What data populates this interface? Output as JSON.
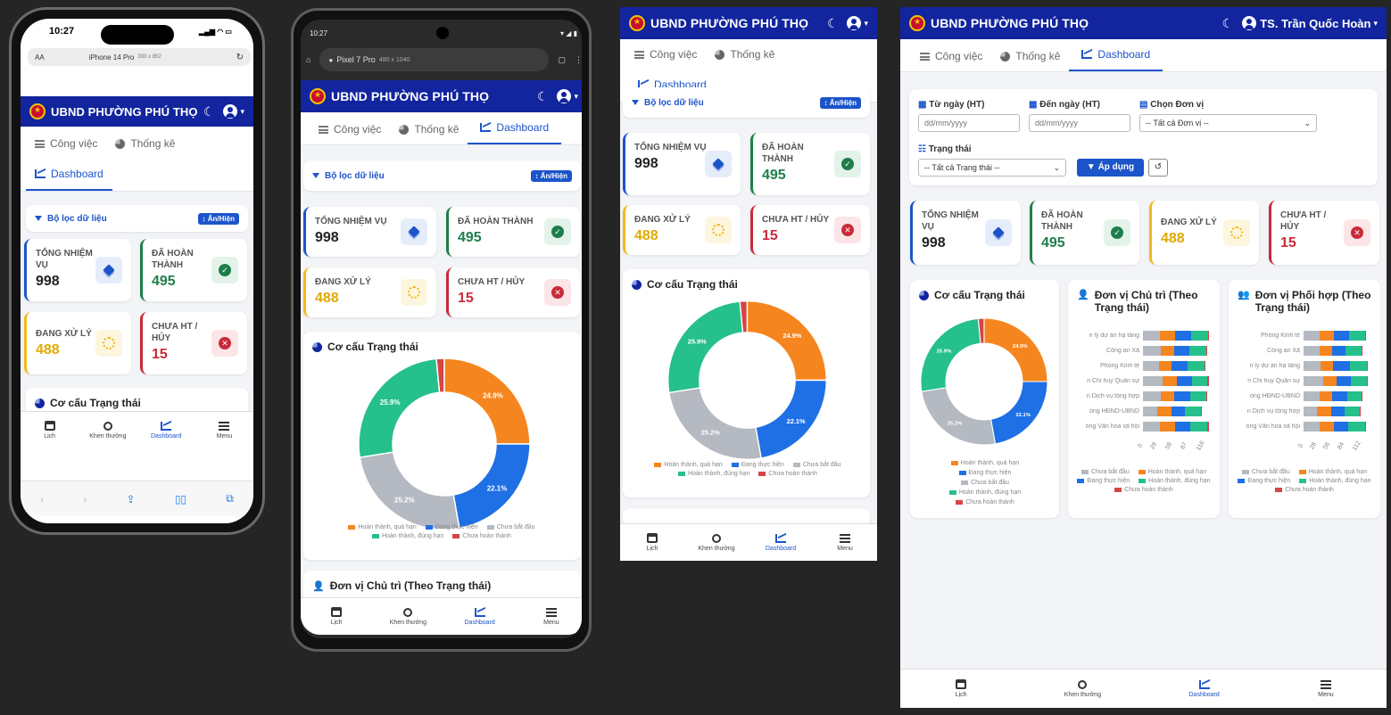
{
  "app": {
    "title": "UBND PHƯỜNG PHÚ THỌ",
    "user_name": "TS. Trần Quốc Hoàn"
  },
  "tabs": [
    {
      "label": "Công việc",
      "icon": "list-icon"
    },
    {
      "label": "Thống kê",
      "icon": "pie-chart-icon"
    },
    {
      "label": "Dashboard",
      "icon": "line-chart-icon"
    }
  ],
  "filter": {
    "title": "Bộ lọc dữ liệu",
    "toggle": "↕ Ẩn/Hiện",
    "from_label": "Từ ngày (HT)",
    "to_label": "Đến ngày (HT)",
    "unit_label": "Chọn Đơn vị",
    "status_label": "Trạng thái",
    "date_placeholder": "dd/mm/yyyy",
    "unit_value": "-- Tất cả Đơn vị --",
    "status_value": "-- Tất cả Trạng thái --",
    "apply": "Áp dụng"
  },
  "stats": [
    {
      "label": "TỔNG NHIỆM VỤ",
      "value": "998",
      "color": "#1c54c9"
    },
    {
      "label": "ĐÃ HOÀN THÀNH",
      "value": "495",
      "color": "#1e7e4a"
    },
    {
      "label": "ĐANG XỬ LÝ",
      "value": "488",
      "color": "#f3b91a"
    },
    {
      "label": "CHƯA HT / HỦY",
      "value": "15",
      "color": "#c92a3a"
    }
  ],
  "sections": {
    "status_structure": "Cơ cấu Trạng thái",
    "lead_unit": "Đơn vị Chủ trì (Theo Trạng thái)",
    "coop_unit": "Đơn vị Phối hợp (Theo Trạng thái)"
  },
  "chart_data": [
    {
      "type": "pie",
      "title": "Cơ cấu Trạng thái",
      "labels": [
        "Hoàn thành, quá hạn",
        "Đang thực hiện",
        "Chưa bắt đầu",
        "Hoàn thành, đúng hạn",
        "Chưa hoàn thành"
      ],
      "values": [
        24.9,
        22.1,
        25.2,
        25.9,
        1.5
      ],
      "data_labels": [
        "24.9%",
        "22.1%",
        "25.2%",
        "25.9%",
        ""
      ],
      "colors": [
        "#f5861f",
        "#1f6fe5",
        "#b4b9c2",
        "#25c08c",
        "#d64545"
      ]
    },
    {
      "type": "bar",
      "title": "Đơn vị Chủ trì (Theo Trạng thái)",
      "categories": [
        "n lý dự án hạ tầng",
        "Công an Xã",
        "Phòng Kinh tế",
        "n Chỉ huy Quân sự",
        "n Dịch vụ tổng hợp",
        "òng HĐND-UBND",
        "òng Văn hóa xã hội"
      ],
      "x_ticks": [
        "0",
        "29",
        "58",
        "87",
        "116"
      ],
      "series_order": [
        "Chưa bắt đầu",
        "Hoàn thành, quá hạn",
        "Đang thực hiện",
        "Hoàn thành, đúng hạn",
        "Chưa hoàn thành"
      ]
    },
    {
      "type": "bar",
      "title": "Đơn vị Phối hợp (Theo Trạng thái)",
      "categories": [
        "Phòng Kinh tế",
        "Công an Xã",
        "n lý dự án hạ tầng",
        "n Chỉ huy Quân sự",
        "òng HĐND-UBND",
        "n Dịch vụ tổng hợp",
        "òng Văn hóa xã hội"
      ],
      "x_ticks": [
        "0",
        "28",
        "56",
        "84",
        "112"
      ],
      "series_order": [
        "Chưa bắt đầu",
        "Hoàn thành, quá hạn",
        "Đang thực hiện",
        "Hoàn thành, đúng hạn",
        "Chưa hoàn thành"
      ]
    }
  ],
  "legend": [
    "Hoàn thành, quá hạn",
    "Đang thực hiện",
    "Chưa bắt đầu",
    "Hoàn thành, đúng hạn",
    "Chưa hoàn thành"
  ],
  "bar_legend": [
    "Chưa bắt đầu",
    "Hoàn thành, quá hạn",
    "Đang thực hiện",
    "Hoàn thành, đúng hạn",
    "Chưa hoàn thành"
  ],
  "nav": [
    {
      "label": "Lịch",
      "icon": "calendar-icon"
    },
    {
      "label": "Khen thưởng",
      "icon": "award-icon"
    },
    {
      "label": "Dashboard",
      "icon": "line-chart-icon"
    },
    {
      "label": "Menu",
      "icon": "menu-icon"
    }
  ],
  "devices": {
    "iphone": {
      "time": "10:27",
      "label": "iPhone 14 Pro",
      "size": "393 x 852",
      "aa": "AA"
    },
    "pixel": {
      "time": "10:27",
      "label": "Pixel 7 Pro",
      "size": "480 x 1040"
    }
  }
}
